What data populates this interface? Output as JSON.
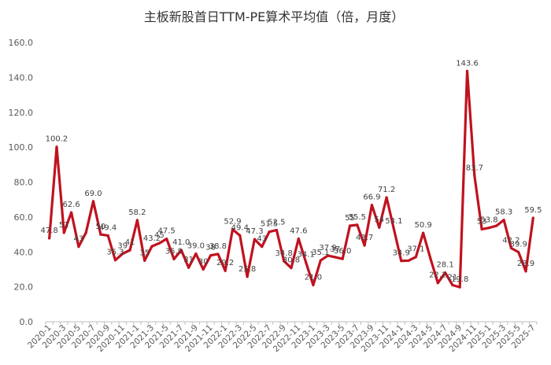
{
  "chart_data": {
    "type": "line",
    "title": "主板新股首日TTM-PE算术平均值（倍，月度）",
    "xlabel": "",
    "ylabel": "",
    "ylim": [
      0,
      160
    ],
    "yticks": [
      "0.0",
      "20.0",
      "40.0",
      "60.0",
      "80.0",
      "100.0",
      "120.0",
      "140.0",
      "160.0"
    ],
    "grid": false,
    "legend": "none",
    "line_color": "#C0121F",
    "x": [
      "2020-1",
      "2020-2",
      "2020-3",
      "2020-4",
      "2020-5",
      "2020-6",
      "2020-7",
      "2020-8",
      "2020-9",
      "2020-10",
      "2020-11",
      "2020-12",
      "2021-1",
      "2021-2",
      "2021-3",
      "2021-4",
      "2021-5",
      "2021-6",
      "2021-7",
      "2021-8",
      "2021-9",
      "2021-10",
      "2021-11",
      "2021-12",
      "2022-1",
      "2022-2",
      "2022-3",
      "2022-4",
      "2022-5",
      "2022-6",
      "2022-7",
      "2022-8",
      "2022-9",
      "2022-10",
      "2022-11",
      "2022-12",
      "2023-1",
      "2023-2",
      "2023-3",
      "2023-4",
      "2023-5",
      "2023-6",
      "2023-7",
      "2023-8",
      "2023-9",
      "2023-10",
      "2023-11",
      "2023-12",
      "2024-1",
      "2024-2",
      "2024-3",
      "2024-4",
      "2024-5",
      "2024-6",
      "2024-7",
      "2024-8",
      "2024-9",
      "2024-10",
      "2024-11",
      "2024-12",
      "2025-1",
      "2025-2",
      "2025-3",
      "2025-4",
      "2025-5",
      "2025-6",
      "2025-7"
    ],
    "x_tick_labels": [
      "2020-1",
      "2020-3",
      "2020-5",
      "2020-7",
      "2020-9",
      "2020-11",
      "2021-1",
      "2021-3",
      "2021-5",
      "2021-7",
      "2021-9",
      "2021-11",
      "2022-1",
      "2022-3",
      "2022-5",
      "2022-7",
      "2022-9",
      "2022-11",
      "2023-1",
      "2023-3",
      "2023-5",
      "2023-7",
      "2023-9",
      "2023-11",
      "2024-1",
      "2024-3",
      "2024-5",
      "2024-7",
      "2024-9",
      "2024-11",
      "2025-1",
      "2025-3",
      "2025-5",
      "2025-7"
    ],
    "values": [
      47.8,
      100.2,
      51.0,
      62.6,
      43.0,
      51.0,
      69.0,
      50.0,
      49.4,
      35.3,
      39.0,
      41.0,
      58.2,
      35.0,
      43.2,
      45.0,
      47.5,
      35.9,
      41.0,
      31.0,
      39.0,
      30.0,
      38.0,
      38.8,
      29.2,
      52.9,
      49.4,
      25.8,
      47.3,
      43.0,
      51.5,
      52.5,
      34.8,
      30.8,
      47.6,
      34.1,
      21.0,
      35.1,
      37.9,
      37.0,
      36.0,
      55.0,
      55.5,
      43.7,
      66.9,
      54.0,
      71.2,
      53.1,
      34.9,
      35.0,
      37.1,
      50.9,
      36.0,
      22.2,
      28.1,
      21.0,
      19.8,
      143.6,
      83.7,
      53.0,
      53.8,
      55.0,
      58.3,
      42.2,
      39.9,
      28.9,
      59.5
    ],
    "data_labels": [
      "47.8",
      "100.2",
      "51",
      "62.6",
      "43",
      "",
      "69.0",
      "50",
      "49.4",
      "35.3",
      "39",
      "41",
      "58.2",
      "35",
      "43.2",
      "45",
      "47.5",
      "35.9",
      "41.0",
      "31",
      "39.0",
      "30",
      "38",
      "38.8",
      "29.2",
      "52.9",
      "49.4",
      "25.8",
      "47.3",
      "43",
      "51.5",
      "52.5",
      "34.8",
      "30.8",
      "47.6",
      "34.1",
      "21.0",
      "35.1",
      "37.9",
      "37",
      "36.0",
      "55",
      "55.5",
      "43.7",
      "66.9",
      "54",
      "71.2",
      "53.1",
      "34.9",
      "",
      "37.1",
      "50.9",
      "",
      "22.2",
      "28.1",
      "21",
      "19.8",
      "143.6",
      "83.7",
      "53",
      "53.8",
      "",
      "58.3",
      "42.2",
      "39.9",
      "28.9",
      "59.5"
    ]
  }
}
